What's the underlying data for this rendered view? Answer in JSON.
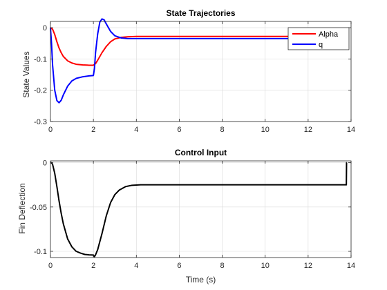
{
  "window": {
    "background": "#ffffff"
  },
  "chart_data": [
    {
      "type": "line",
      "title": "State Trajectories",
      "xlabel": "",
      "ylabel": "State Values",
      "xlim": [
        0,
        14
      ],
      "ylim": [
        -0.3,
        0.02
      ],
      "xticks": [
        0,
        2,
        4,
        6,
        8,
        10,
        12,
        14
      ],
      "yticks": [
        0,
        -0.1,
        -0.2,
        -0.3
      ],
      "ytick_labels": [
        "0",
        "-0.1",
        "-0.2",
        "-0.3"
      ],
      "grid": true,
      "legend_location": "top-right",
      "series": [
        {
          "name": "Alpha",
          "color": "#ff0000",
          "x": [
            0,
            0.1,
            0.2,
            0.3,
            0.4,
            0.5,
            0.6,
            0.8,
            1.0,
            1.2,
            1.5,
            1.8,
            2.0,
            2.1,
            2.2,
            2.4,
            2.6,
            2.8,
            3.0,
            3.3,
            3.6,
            4.0,
            5.0,
            6.0,
            8.0,
            10.0,
            12.0,
            13.8
          ],
          "y": [
            0,
            -0.005,
            -0.022,
            -0.045,
            -0.065,
            -0.08,
            -0.092,
            -0.106,
            -0.113,
            -0.117,
            -0.119,
            -0.12,
            -0.12,
            -0.115,
            -0.104,
            -0.08,
            -0.06,
            -0.045,
            -0.036,
            -0.031,
            -0.029,
            -0.028,
            -0.028,
            -0.028,
            -0.028,
            -0.028,
            -0.028,
            -0.028
          ]
        },
        {
          "name": "q",
          "color": "#0000ff",
          "x": [
            0,
            0.05,
            0.1,
            0.2,
            0.3,
            0.4,
            0.5,
            0.6,
            0.8,
            1.0,
            1.2,
            1.5,
            1.8,
            2.0,
            2.05,
            2.1,
            2.2,
            2.3,
            2.4,
            2.5,
            2.6,
            2.8,
            3.0,
            3.3,
            3.6,
            4.0,
            5.0,
            6.0,
            8.0,
            10.0,
            12.0,
            13.8
          ],
          "y": [
            0,
            -0.05,
            -0.12,
            -0.2,
            -0.233,
            -0.24,
            -0.232,
            -0.215,
            -0.187,
            -0.17,
            -0.162,
            -0.157,
            -0.154,
            -0.153,
            -0.13,
            -0.08,
            -0.02,
            0.018,
            0.028,
            0.025,
            0.012,
            -0.012,
            -0.026,
            -0.033,
            -0.035,
            -0.035,
            -0.035,
            -0.035,
            -0.035,
            -0.035,
            -0.035,
            -0.035
          ]
        }
      ]
    },
    {
      "type": "line",
      "title": "Control Input",
      "xlabel": "Time (s)",
      "ylabel": "Fin Deflection",
      "xlim": [
        0,
        14
      ],
      "ylim": [
        -0.107,
        0.002
      ],
      "xticks": [
        0,
        2,
        4,
        6,
        8,
        10,
        12,
        14
      ],
      "yticks": [
        0,
        -0.05,
        -0.1
      ],
      "ytick_labels": [
        "0",
        "-0.05",
        "-0.1"
      ],
      "grid": true,
      "series": [
        {
          "color": "#000000",
          "x": [
            0,
            0.05,
            0.1,
            0.2,
            0.3,
            0.4,
            0.5,
            0.6,
            0.8,
            1.0,
            1.2,
            1.4,
            1.6,
            1.8,
            2.0,
            2.05,
            2.1,
            2.2,
            2.4,
            2.6,
            2.8,
            3.0,
            3.2,
            3.5,
            3.8,
            4.2,
            5.0,
            6.0,
            8.0,
            10.0,
            12.0,
            13.78,
            13.79,
            13.8
          ],
          "y": [
            0,
            0,
            -0.002,
            -0.012,
            -0.027,
            -0.043,
            -0.057,
            -0.069,
            -0.086,
            -0.095,
            -0.1,
            -0.102,
            -0.1035,
            -0.104,
            -0.1042,
            -0.106,
            -0.104,
            -0.098,
            -0.08,
            -0.06,
            -0.045,
            -0.036,
            -0.031,
            -0.027,
            -0.0255,
            -0.025,
            -0.025,
            -0.025,
            -0.025,
            -0.025,
            -0.025,
            -0.025,
            0,
            0
          ]
        }
      ]
    }
  ]
}
